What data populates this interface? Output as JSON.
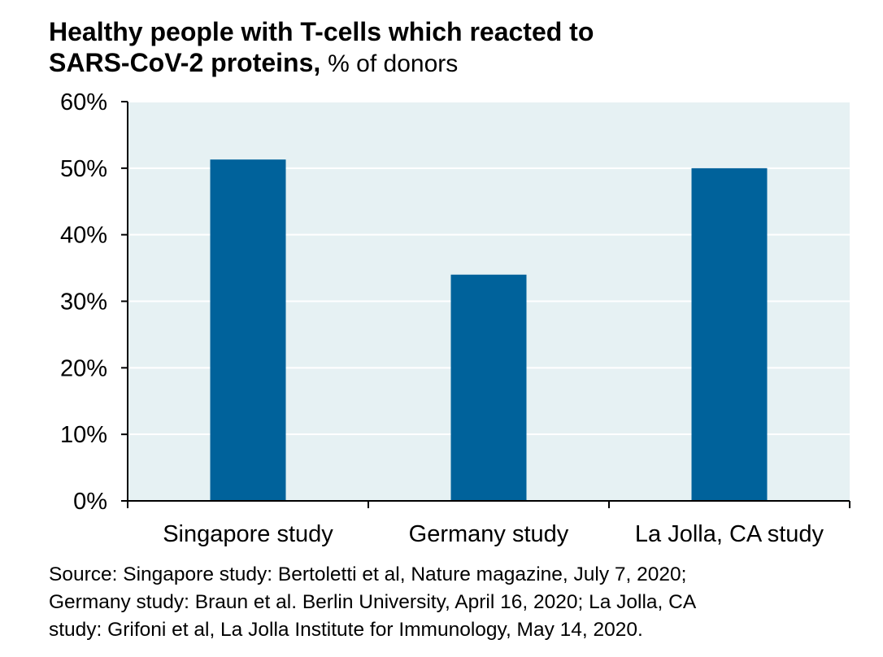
{
  "title": {
    "line1": "Healthy people with T-cells which reacted to",
    "line2": "SARS-CoV-2 proteins,",
    "unit": "% of donors"
  },
  "chart_data": {
    "type": "bar",
    "title": "Healthy people with T-cells which reacted to SARS-CoV-2 proteins, % of donors",
    "categories": [
      "Singapore study",
      "Germany study",
      "La Jolla, CA study"
    ],
    "values": [
      51.3,
      34,
      50
    ],
    "ylim": [
      0,
      60
    ],
    "yticks": [
      0,
      10,
      20,
      30,
      40,
      50,
      60
    ],
    "ytick_labels": [
      "0%",
      "10%",
      "20%",
      "30%",
      "40%",
      "50%",
      "60%"
    ],
    "xlabel": "",
    "ylabel": "",
    "grid": true,
    "bar_color": "#00629B",
    "plot_background": "#E6F1F3"
  },
  "source": {
    "lines": [
      "Source: Singapore study: Bertoletti et al, Nature magazine, July 7, 2020;",
      "Germany study: Braun et al. Berlin University, April 16, 2020; La Jolla, CA",
      "study: Grifoni et al, La Jolla Institute for Immunology, May 14, 2020."
    ]
  }
}
